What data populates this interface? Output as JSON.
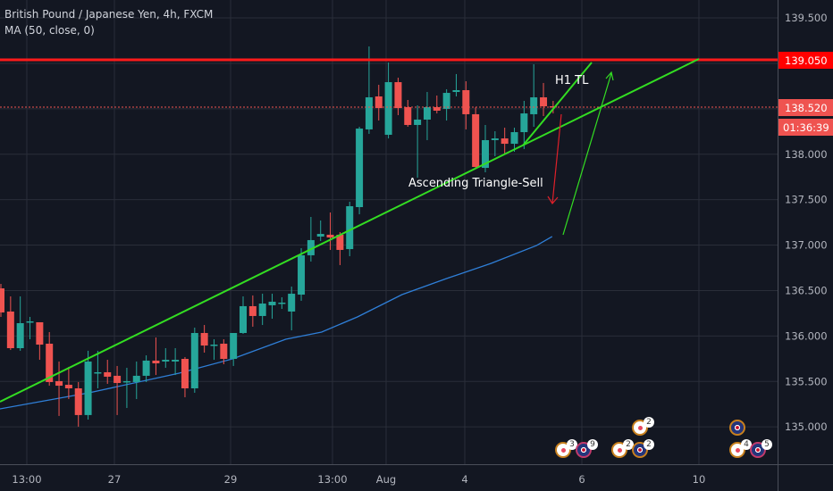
{
  "legend": {
    "title": "British Pound / Japanese Yen, 4h, FXCM",
    "indicator": "MA (50, close, 0)"
  },
  "colors": {
    "background": "#131722",
    "up": "#26a69a",
    "down": "#ef5350",
    "ma": "#2962ff",
    "trendline": "#33dd22",
    "resistance": "#ff0000",
    "grid": "#2a2e39"
  },
  "annotations": {
    "h1_tl": "H1 TL",
    "pattern": "Ascending Triangle-Sell"
  },
  "price_labels": {
    "resistance": "139.050",
    "last_price": "138.520",
    "countdown": "01:36:39"
  },
  "chart_data": {
    "type": "candlestick",
    "title": "British Pound / Japanese Yen, 4h, FXCM",
    "ylim": [
      134.55,
      139.69
    ],
    "y_ticks": [
      "139.500",
      "139.000",
      "138.500",
      "138.000",
      "137.500",
      "137.000",
      "136.500",
      "136.000",
      "135.500",
      "135.000"
    ],
    "x_ticks": [
      "13:00",
      "27",
      "29",
      "13:00",
      "Aug",
      "4",
      "6",
      "10"
    ],
    "grid": true,
    "candles": [
      [
        136.524,
        136.573,
        136.21,
        136.259
      ],
      [
        136.269,
        136.436,
        135.846,
        135.866
      ],
      [
        135.866,
        136.436,
        135.837,
        136.141
      ],
      [
        136.151,
        136.21,
        135.964,
        136.161
      ],
      [
        136.151,
        136.151,
        135.738,
        135.905
      ],
      [
        135.915,
        136.043,
        135.453,
        135.493
      ],
      [
        135.503,
        135.719,
        135.12,
        135.453
      ],
      [
        135.463,
        135.66,
        135.306,
        135.424
      ],
      [
        135.424,
        135.493,
        135.002,
        135.13
      ],
      [
        135.13,
        135.837,
        135.08,
        135.719
      ],
      [
        135.591,
        135.837,
        135.424,
        135.601
      ],
      [
        135.601,
        135.738,
        135.473,
        135.552
      ],
      [
        135.562,
        135.67,
        135.13,
        135.483
      ],
      [
        135.493,
        135.65,
        135.208,
        135.503
      ],
      [
        135.493,
        135.719,
        135.306,
        135.562
      ],
      [
        135.562,
        135.787,
        135.493,
        135.729
      ],
      [
        135.729,
        135.984,
        135.571,
        135.699
      ],
      [
        135.719,
        135.866,
        135.65,
        135.738
      ],
      [
        135.719,
        135.866,
        135.571,
        135.738
      ],
      [
        135.748,
        135.768,
        135.326,
        135.424
      ],
      [
        135.424,
        136.092,
        135.375,
        136.033
      ],
      [
        136.033,
        136.121,
        135.817,
        135.895
      ],
      [
        135.895,
        135.964,
        135.738,
        135.905
      ],
      [
        135.915,
        135.964,
        135.689,
        135.748
      ],
      [
        135.748,
        136.033,
        135.67,
        136.033
      ],
      [
        136.033,
        136.436,
        136.023,
        136.328
      ],
      [
        136.328,
        136.446,
        136.102,
        136.22
      ],
      [
        136.22,
        136.465,
        136.121,
        136.357
      ],
      [
        136.338,
        136.465,
        136.19,
        136.377
      ],
      [
        136.357,
        136.426,
        136.298,
        136.367
      ],
      [
        136.269,
        136.544,
        136.062,
        136.465
      ],
      [
        136.455,
        136.966,
        136.387,
        136.888
      ],
      [
        136.888,
        137.31,
        136.819,
        137.055
      ],
      [
        137.094,
        137.271,
        137.045,
        137.123
      ],
      [
        137.114,
        137.359,
        136.947,
        137.084
      ],
      [
        137.114,
        137.143,
        136.78,
        136.947
      ],
      [
        136.956,
        137.477,
        136.878,
        137.428
      ],
      [
        137.418,
        138.302,
        137.339,
        138.282
      ],
      [
        138.273,
        139.186,
        138.224,
        138.626
      ],
      [
        138.636,
        138.764,
        138.371,
        138.508
      ],
      [
        138.214,
        139.009,
        138.174,
        138.793
      ],
      [
        138.793,
        138.842,
        138.43,
        138.508
      ],
      [
        138.518,
        138.597,
        138.302,
        138.322
      ],
      [
        138.322,
        138.538,
        137.742,
        138.381
      ],
      [
        138.381,
        138.685,
        138.155,
        138.518
      ],
      [
        138.518,
        138.646,
        138.449,
        138.479
      ],
      [
        138.499,
        138.715,
        138.371,
        138.675
      ],
      [
        138.685,
        138.882,
        138.636,
        138.705
      ],
      [
        138.705,
        138.803,
        138.273,
        138.44
      ],
      [
        138.44,
        138.518,
        137.85,
        137.86
      ],
      [
        137.85,
        138.322,
        137.801,
        138.155
      ],
      [
        138.155,
        138.253,
        137.978,
        138.174
      ],
      [
        138.174,
        138.292,
        138.007,
        138.115
      ],
      [
        138.115,
        138.292,
        138.027,
        138.243
      ],
      [
        138.243,
        138.587,
        138.057,
        138.449
      ],
      [
        138.44,
        138.99,
        138.302,
        138.626
      ],
      [
        138.626,
        138.784,
        138.42,
        138.528
      ],
      [
        138.528,
        138.587,
        138.449,
        138.52
      ]
    ],
    "candle_format": [
      "open",
      "high",
      "low",
      "close"
    ],
    "ma_series": {
      "name": "MA (50, close, 0)",
      "points": [
        [
          -0.1,
          135.198
        ],
        [
          9.1,
          135.375
        ],
        [
          18.4,
          135.591
        ],
        [
          23.9,
          135.748
        ],
        [
          29.4,
          135.964
        ],
        [
          33.1,
          136.043
        ],
        [
          36.8,
          136.21
        ],
        [
          41.4,
          136.455
        ],
        [
          46.0,
          136.632
        ],
        [
          50.6,
          136.799
        ],
        [
          55.3,
          136.996
        ],
        [
          56.9,
          137.094
        ]
      ]
    },
    "resistance_level": 139.05
  },
  "events": [
    {
      "type": "dot",
      "count": "3"
    },
    {
      "type": "flag",
      "count": "9"
    },
    {
      "type": "dot",
      "count": "2"
    },
    {
      "type": "flag",
      "count": "2"
    },
    {
      "type": "dot",
      "count": "2"
    },
    {
      "type": "flag",
      "count": ""
    },
    {
      "type": "dot",
      "count": "4"
    },
    {
      "type": "flag",
      "count": "5"
    }
  ]
}
